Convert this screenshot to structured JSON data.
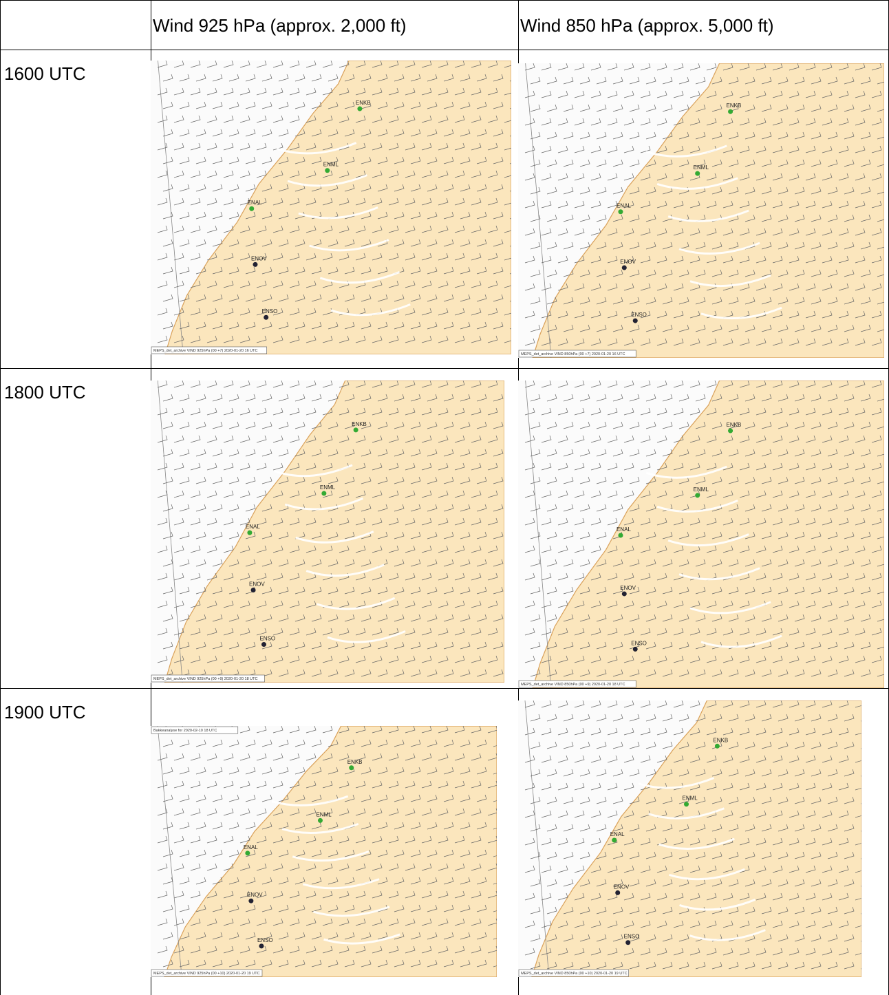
{
  "table": {
    "columns": [
      "Wind 925 hPa (approx. 2,000 ft)",
      "Wind 850 hPa (approx. 5,000 ft)"
    ],
    "rows": [
      {
        "time": "1600 UTC",
        "maps": [
          {
            "caption": "MEPS_det_archive VIND 925hPa (00 +7) 2020-01-20 16 UTC",
            "stations": [
              "ENKB",
              "ENML",
              "ENAL",
              "ENOV",
              "ENSO"
            ]
          },
          {
            "caption": "MEPS_det_archive VIND 850hPa (00 +7) 2020-01-20 16 UTC",
            "stations": [
              "ENKB",
              "ENML",
              "ENAL",
              "ENOV",
              "ENSO"
            ]
          }
        ]
      },
      {
        "time": "1800 UTC",
        "maps": [
          {
            "caption": "MEPS_det_archive VIND 925hPa (00 +9) 2020-01-20 18 UTC",
            "stations": [
              "ENKB",
              "ENML",
              "ENAL",
              "ENOV",
              "ENSO"
            ]
          },
          {
            "caption": "MEPS_det_archive VIND 850hPa (00 +9) 2020-01-20 18 UTC",
            "stations": [
              "ENKB",
              "ENML",
              "ENAL",
              "ENOV",
              "ENSO"
            ]
          }
        ]
      },
      {
        "time": "1900 UTC",
        "maps": [
          {
            "top_label": "Bakkeanalyse for 2020-02-10 18 UTC",
            "caption": "MEPS_det_archive VIND 925hPa (00 +10) 2020-01-20 19 UTC",
            "stations": [
              "ENKB",
              "ENML",
              "ENAL",
              "ENOV",
              "ENSO"
            ]
          },
          {
            "caption": "MEPS_det_archive VIND 850hPa (00 +10) 2020-01-20 19 UTC",
            "stations": [
              "ENKB",
              "ENML",
              "ENAL",
              "ENOV",
              "ENSO"
            ]
          }
        ]
      }
    ]
  }
}
